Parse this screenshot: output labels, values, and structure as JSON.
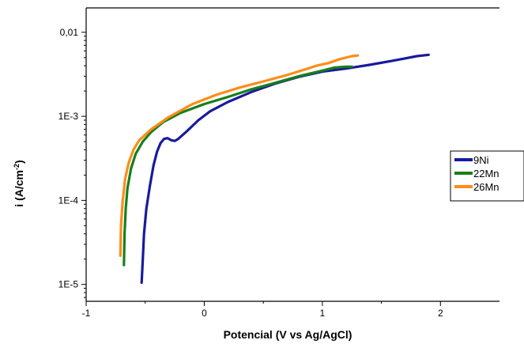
{
  "chart_data": {
    "type": "line",
    "xlabel": "Potencial (V vs Ag/AgCl)",
    "ylabel_main": "i (A/cm",
    "ylabel_sup": "-2",
    "ylabel_tail": ")",
    "xlim": [
      -1,
      2.5
    ],
    "ylim_log10": [
      -5.2,
      2
    ],
    "ylim": [
      6.3e-06,
      0.0195
    ],
    "y_scale": "log",
    "x_ticks": [
      -1,
      0,
      1,
      2
    ],
    "x_tick_labels": [
      "-1",
      "0",
      "1",
      "2"
    ],
    "y_ticks": [
      0.01,
      0.001,
      0.0001,
      1e-05
    ],
    "y_tick_labels": [
      "0,01",
      "1E-3",
      "1E-4",
      "1E-5"
    ],
    "legend_position": "right",
    "series": [
      {
        "name": "9Ni",
        "color": "#1a1a9c",
        "points": [
          [
            -0.53,
            1.05e-05
          ],
          [
            -0.52,
            2e-05
          ],
          [
            -0.51,
            4e-05
          ],
          [
            -0.49,
            8e-05
          ],
          [
            -0.46,
            0.00015
          ],
          [
            -0.43,
            0.00026
          ],
          [
            -0.4,
            0.00038
          ],
          [
            -0.37,
            0.00048
          ],
          [
            -0.34,
            0.00054
          ],
          [
            -0.31,
            0.00055
          ],
          [
            -0.28,
            0.00052
          ],
          [
            -0.25,
            0.00051
          ],
          [
            -0.22,
            0.00054
          ],
          [
            -0.15,
            0.00066
          ],
          [
            -0.05,
            0.0009
          ],
          [
            0.05,
            0.00115
          ],
          [
            0.2,
            0.00148
          ],
          [
            0.4,
            0.00195
          ],
          [
            0.6,
            0.00245
          ],
          [
            0.8,
            0.00295
          ],
          [
            1.0,
            0.0034
          ],
          [
            1.2,
            0.0037
          ],
          [
            1.4,
            0.0041
          ],
          [
            1.6,
            0.0046
          ],
          [
            1.8,
            0.0052
          ],
          [
            1.9,
            0.0054
          ]
        ]
      },
      {
        "name": "22Mn",
        "color": "#17801a",
        "points": [
          [
            -0.68,
            1.7e-05
          ],
          [
            -0.675,
            4e-05
          ],
          [
            -0.665,
            8e-05
          ],
          [
            -0.65,
            0.00014
          ],
          [
            -0.62,
            0.00024
          ],
          [
            -0.58,
            0.00036
          ],
          [
            -0.52,
            0.0005
          ],
          [
            -0.45,
            0.00065
          ],
          [
            -0.35,
            0.00085
          ],
          [
            -0.2,
            0.0011
          ],
          [
            0,
            0.0014
          ],
          [
            0.2,
            0.0017
          ],
          [
            0.4,
            0.0021
          ],
          [
            0.6,
            0.0025
          ],
          [
            0.8,
            0.003
          ],
          [
            1.0,
            0.0035
          ],
          [
            1.1,
            0.0038
          ],
          [
            1.2,
            0.0039
          ],
          [
            1.25,
            0.0039
          ]
        ]
      },
      {
        "name": "26Mn",
        "color": "#ff8c1a",
        "points": [
          [
            -0.71,
            2.2e-05
          ],
          [
            -0.705,
            5e-05
          ],
          [
            -0.69,
            0.0001
          ],
          [
            -0.67,
            0.00018
          ],
          [
            -0.64,
            0.00028
          ],
          [
            -0.6,
            0.0004
          ],
          [
            -0.55,
            0.00052
          ],
          [
            -0.45,
            0.0007
          ],
          [
            -0.3,
            0.00098
          ],
          [
            -0.1,
            0.0014
          ],
          [
            0.1,
            0.0018
          ],
          [
            0.3,
            0.0022
          ],
          [
            0.5,
            0.0026
          ],
          [
            0.7,
            0.0031
          ],
          [
            0.85,
            0.0036
          ],
          [
            0.95,
            0.004
          ],
          [
            1.05,
            0.0043
          ],
          [
            1.15,
            0.0048
          ],
          [
            1.25,
            0.0052
          ],
          [
            1.3,
            0.0053
          ]
        ]
      }
    ]
  }
}
